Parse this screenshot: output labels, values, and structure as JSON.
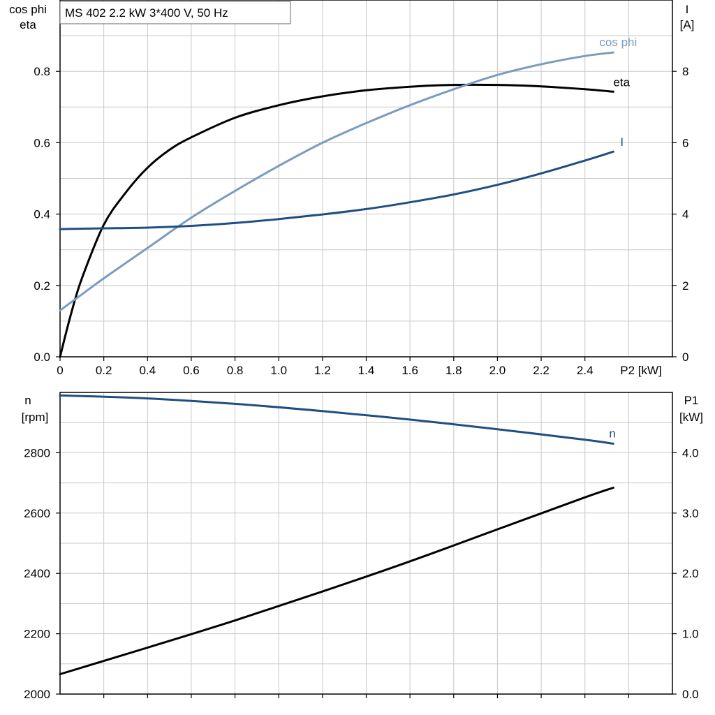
{
  "title_box": "MS 402   2.2 kW   3*400 V, 50 Hz",
  "colors": {
    "eta": "#000000",
    "cosphi": "#7a9cc0",
    "current": "#1f4f82",
    "speed": "#1f4f82",
    "p1": "#000000"
  },
  "chart_data": [
    {
      "type": "line",
      "xlabel": "P2 [kW]",
      "xlim": [
        0,
        2.8
      ],
      "x_ticks": [
        "0",
        "0.2",
        "0.4",
        "0.6",
        "0.8",
        "1.0",
        "1.2",
        "1.4",
        "1.6",
        "1.8",
        "2.0",
        "2.2",
        "2.4"
      ],
      "y_left_label_line1": "cos phi",
      "y_left_label_line2": "eta",
      "y_left_lim": [
        0,
        1.0
      ],
      "y_left_ticks": [
        "0.0",
        "0.2",
        "0.4",
        "0.6",
        "0.8"
      ],
      "y_right_label_line1": "I",
      "y_right_label_line2": "[A]",
      "y_right_lim": [
        0,
        10
      ],
      "y_right_ticks": [
        "0",
        "2",
        "4",
        "6",
        "8"
      ],
      "grid": true,
      "series": [
        {
          "name": "eta",
          "axis": "left",
          "x": [
            0,
            0.05,
            0.1,
            0.2,
            0.3,
            0.4,
            0.5,
            0.6,
            0.8,
            1.0,
            1.2,
            1.4,
            1.6,
            1.8,
            2.0,
            2.2,
            2.4,
            2.53
          ],
          "y": [
            0.0,
            0.12,
            0.22,
            0.37,
            0.46,
            0.53,
            0.58,
            0.615,
            0.67,
            0.705,
            0.73,
            0.747,
            0.757,
            0.762,
            0.762,
            0.758,
            0.75,
            0.743
          ]
        },
        {
          "name": "cos phi",
          "axis": "left",
          "x": [
            0,
            0.1,
            0.2,
            0.4,
            0.6,
            0.8,
            1.0,
            1.2,
            1.4,
            1.6,
            1.8,
            2.0,
            2.2,
            2.4,
            2.53
          ],
          "y": [
            0.13,
            0.175,
            0.22,
            0.305,
            0.39,
            0.465,
            0.535,
            0.6,
            0.655,
            0.705,
            0.75,
            0.79,
            0.82,
            0.843,
            0.853
          ]
        },
        {
          "name": "I",
          "axis": "right",
          "x": [
            0,
            0.2,
            0.4,
            0.6,
            0.8,
            1.0,
            1.2,
            1.4,
            1.6,
            1.8,
            2.0,
            2.2,
            2.4,
            2.53
          ],
          "y": [
            3.58,
            3.6,
            3.62,
            3.67,
            3.75,
            3.86,
            3.99,
            4.14,
            4.33,
            4.55,
            4.82,
            5.14,
            5.5,
            5.75
          ]
        }
      ]
    },
    {
      "type": "line",
      "xlim": [
        0,
        2.8
      ],
      "y_left_label_line1": "n",
      "y_left_label_line2": "[rpm]",
      "y_left_lim": [
        2000,
        3000
      ],
      "y_left_ticks": [
        "2000",
        "2200",
        "2400",
        "2600",
        "2800"
      ],
      "y_right_label_line1": "P1",
      "y_right_label_line2": "[kW]",
      "y_right_lim": [
        0,
        5
      ],
      "y_right_ticks": [
        "0.0",
        "1.0",
        "2.0",
        "3.0",
        "4.0"
      ],
      "grid": true,
      "series": [
        {
          "name": "n",
          "axis": "left",
          "x": [
            0,
            0.4,
            0.8,
            1.2,
            1.6,
            2.0,
            2.4,
            2.53
          ],
          "y": [
            2990,
            2980,
            2962,
            2938,
            2910,
            2878,
            2843,
            2830
          ]
        },
        {
          "name": "",
          "axis": "right",
          "x": [
            0,
            0.4,
            0.8,
            1.2,
            1.6,
            2.0,
            2.4,
            2.53
          ],
          "y": [
            0.33,
            0.77,
            1.22,
            1.7,
            2.2,
            2.73,
            3.26,
            3.42
          ]
        }
      ]
    }
  ]
}
